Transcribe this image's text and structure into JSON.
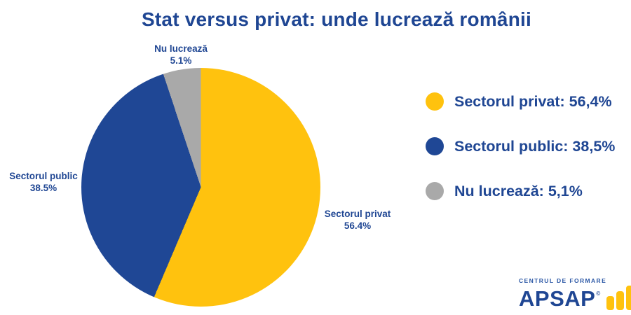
{
  "chart_data": {
    "type": "pie",
    "title": "Stat versus privat: unde lucrează românii",
    "start_angle_deg": 0,
    "direction": "clockwise",
    "legend_position": "right",
    "slices": [
      {
        "label": "Sectorul privat",
        "value": 56.4,
        "pct_label": "56.4%",
        "legend_label": "Sectorul privat: 56,4%",
        "color": "#FFC20E"
      },
      {
        "label": "Sectorul public",
        "value": 38.5,
        "pct_label": "38.5%",
        "legend_label": "Sectorul public: 38,5%",
        "color": "#1F4795"
      },
      {
        "label": "Nu lucrează",
        "value": 5.1,
        "pct_label": "5.1%",
        "legend_label": "Nu lucrează: 5,1%",
        "color": "#A9A9A9"
      }
    ]
  },
  "logo": {
    "tagline": "CENTRUL DE FORMARE",
    "wordmark": "APSAP",
    "trademark": "©",
    "bar_color": "#FFC20E",
    "text_color": "#1F4693"
  },
  "colors": {
    "background": "#FFFFFF",
    "text_primary": "#1F4693"
  }
}
